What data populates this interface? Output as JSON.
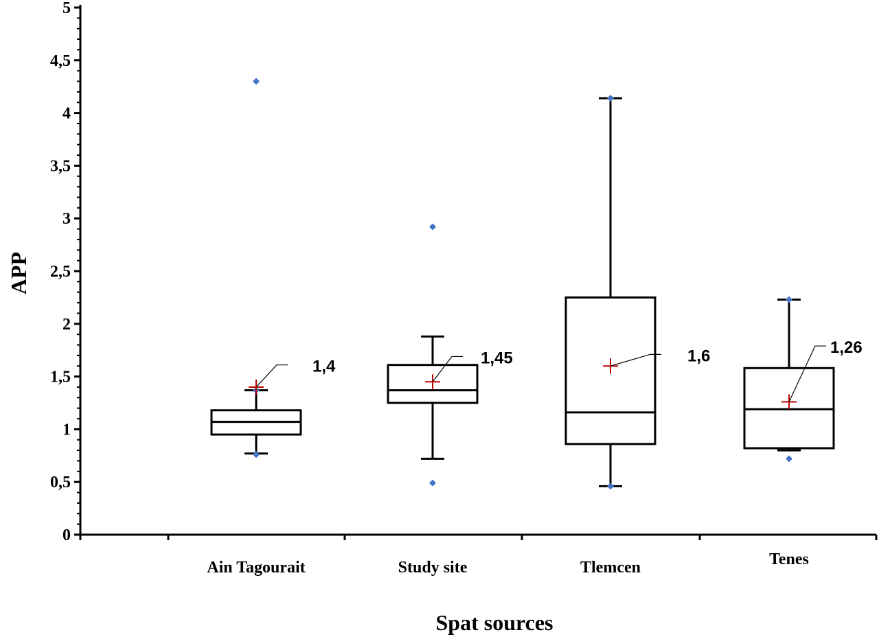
{
  "chart_data": {
    "type": "box",
    "xlabel": "Spat sources",
    "ylabel": "APP",
    "ylim": [
      0,
      5
    ],
    "y_tick_step": 0.5,
    "y_tick_labels": [
      "0",
      "0,5",
      "1",
      "1,5",
      "2",
      "2,5",
      "3",
      "3,5",
      "4",
      "4,5",
      "5"
    ],
    "grid": false,
    "legend": "none",
    "colors": {
      "box": "#000000",
      "mean_marker": "#c00000",
      "point": "#4472c4"
    },
    "categories": [
      "Ain Tagourait",
      "Study site",
      "Tlemcen",
      "Tenes"
    ],
    "boxes": [
      {
        "category": "Ain Tagourait",
        "whisker_low": 0.77,
        "q1": 0.95,
        "median": 1.07,
        "q3": 1.18,
        "whisker_high": 1.37,
        "mean": 1.4,
        "mean_label": "1,4",
        "points": [
          0.76,
          1.37,
          4.3
        ]
      },
      {
        "category": "Study site",
        "whisker_low": 0.72,
        "q1": 1.25,
        "median": 1.37,
        "q3": 1.61,
        "whisker_high": 1.88,
        "mean": 1.45,
        "mean_label": "1,45",
        "points": [
          0.49,
          2.92
        ]
      },
      {
        "category": "Tlemcen",
        "whisker_low": 0.46,
        "q1": 0.86,
        "median": 1.16,
        "q3": 2.25,
        "whisker_high": 4.14,
        "mean": 1.6,
        "mean_label": "1,6",
        "points": [
          0.46,
          4.14
        ]
      },
      {
        "category": "Tenes",
        "whisker_low": 0.8,
        "q1": 0.82,
        "median": 1.19,
        "q3": 1.58,
        "whisker_high": 2.23,
        "mean": 1.26,
        "mean_label": "1,26",
        "points": [
          0.72,
          2.23
        ]
      }
    ]
  }
}
